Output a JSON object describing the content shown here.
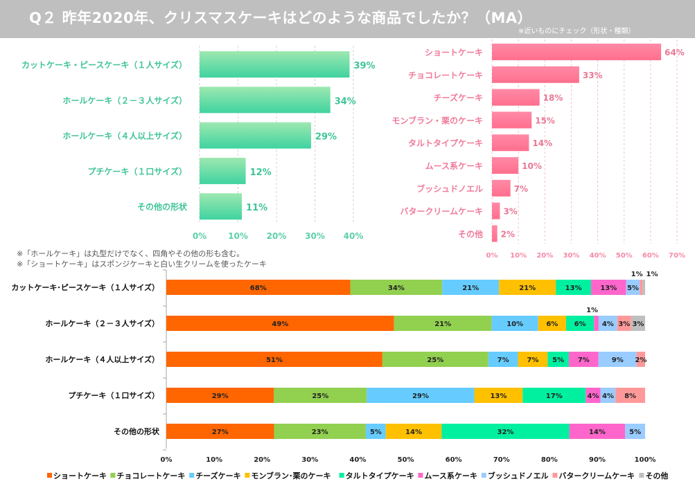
{
  "header": {
    "title": "Q２ 昨年2020年、クリスマスケーキはどのような商品でしたか？（MA）",
    "subnote": "※近いものにチェック（形状・種類）"
  },
  "notes": [
    "※「ホールケーキ」は丸型だけでなく、四角やその他の形も含む。",
    "※「ショートケーキ」はスポンジケーキと白い生クリームを使ったケーキ"
  ],
  "chart_data": [
    {
      "type": "bar",
      "orientation": "horizontal",
      "title": "形状",
      "categories": [
        "カットケーキ・ピースケーキ（１人サイズ）",
        "ホールケーキ（２－３人サイズ）",
        "ホールケーキ（４人以上サイズ）",
        "プチケーキ（１口サイズ）",
        "その他の形状"
      ],
      "values": [
        39,
        34,
        29,
        12,
        11
      ],
      "value_labels": [
        "39%",
        "34%",
        "29%",
        "12%",
        "11%"
      ],
      "xlim": [
        0,
        40
      ],
      "xticks": [
        "0%",
        "10%",
        "20%",
        "30%",
        "40%"
      ],
      "grid": true,
      "color": "#4fd6a0"
    },
    {
      "type": "bar",
      "orientation": "horizontal",
      "title": "種類",
      "categories": [
        "ショートケーキ",
        "チョコレートケーキ",
        "チーズケーキ",
        "モンブラン・栗のケーキ",
        "タルトタイプケーキ",
        "ムース系ケーキ",
        "ブッシュドノエル",
        "バタークリームケーキ",
        "その他"
      ],
      "values": [
        64,
        33,
        18,
        15,
        14,
        10,
        7,
        3,
        2
      ],
      "value_labels": [
        "64%",
        "33%",
        "18%",
        "15%",
        "14%",
        "10%",
        "7%",
        "3%",
        "2%"
      ],
      "xlim": [
        0,
        70
      ],
      "xticks": [
        "0%",
        "10%",
        "20%",
        "30%",
        "40%",
        "50%",
        "60%",
        "70%"
      ],
      "grid": true,
      "color": "#ff7a98"
    },
    {
      "type": "bar",
      "orientation": "horizontal",
      "stacked": "percent",
      "categories": [
        "カットケーキ･ピースケーキ（１人サイズ）",
        "ホールケーキ（２－３人サイズ）",
        "ホールケーキ（４人以上サイズ）",
        "プチケーキ（１口サイズ）",
        "その他の形状"
      ],
      "xlim": [
        0,
        100
      ],
      "xticks": [
        "0%",
        "10%",
        "20%",
        "30%",
        "40%",
        "50%",
        "60%",
        "70%",
        "80%",
        "90%",
        "100%"
      ],
      "legend_position": "bottom",
      "series": [
        {
          "name": "ショートケーキ",
          "color": "#ff6600",
          "values": [
            68,
            49,
            51,
            29,
            27
          ]
        },
        {
          "name": "チョコレートケーキ",
          "color": "#92d050",
          "values": [
            34,
            21,
            25,
            25,
            23
          ]
        },
        {
          "name": "チーズケーキ",
          "color": "#66ccff",
          "values": [
            21,
            10,
            7,
            29,
            5
          ]
        },
        {
          "name": "モンブラン･栗のケーキ",
          "color": "#ffc000",
          "values": [
            21,
            6,
            7,
            13,
            14
          ]
        },
        {
          "name": "タルトタイプケーキ",
          "color": "#00f0a0",
          "values": [
            13,
            6,
            5,
            17,
            32
          ]
        },
        {
          "name": "ムース系ケーキ",
          "color": "#ff66cc",
          "values": [
            13,
            1,
            7,
            4,
            14
          ]
        },
        {
          "name": "ブッシュドノエル",
          "color": "#99ccff",
          "values": [
            5,
            4,
            9,
            4,
            5
          ]
        },
        {
          "name": "バタークリームケーキ",
          "color": "#ff9999",
          "values": [
            1,
            3,
            2,
            8,
            0
          ]
        },
        {
          "name": "その他",
          "color": "#bfbfbf",
          "values": [
            1,
            3,
            0,
            0,
            0
          ]
        }
      ]
    }
  ]
}
